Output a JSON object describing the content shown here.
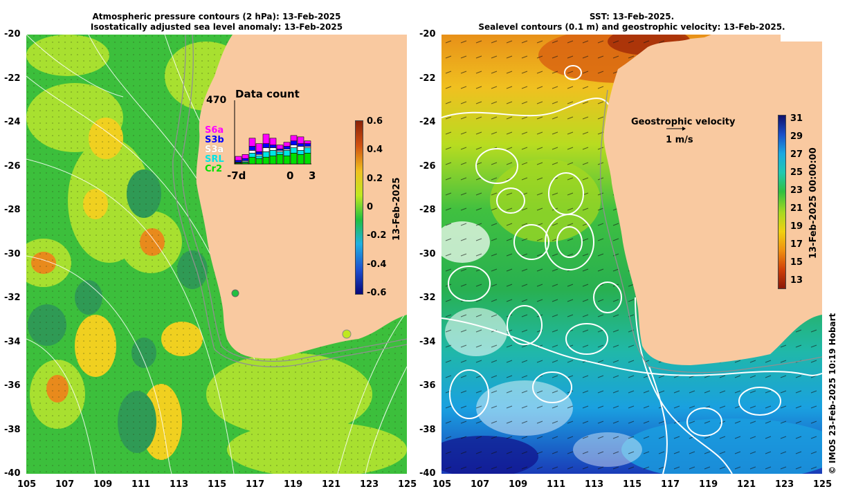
{
  "left_panel": {
    "title_line1": "Atmospheric pressure contours (2 hPa): 13-Feb-2025",
    "title_line2": "Isostatically adjusted sea level anomaly: 13-Feb-2025",
    "colorbar_label": "13-Feb-2025",
    "colorbar_ticks": [
      "0.6",
      "0.4",
      "0.2",
      "0",
      "-0.2",
      "-0.4",
      "-0.6"
    ],
    "colorbar_colors": [
      "#08087a",
      "#1d4fcf",
      "#20b0e0",
      "#20c040",
      "#c0e820",
      "#f0c020",
      "#d05010",
      "#8a2208"
    ],
    "inset": {
      "title": "Data count",
      "max_label": "470",
      "legend": [
        {
          "label": "S6a",
          "color": "#ff00ff"
        },
        {
          "label": "S3b",
          "color": "#0000ff"
        },
        {
          "label": "S3a",
          "color": "#ffffff"
        },
        {
          "label": "SRL",
          "color": "#00e5e5"
        },
        {
          "label": "Cr2",
          "color": "#00e000"
        }
      ],
      "x_labels": [
        "-7d",
        "0",
        "3"
      ],
      "bars": [
        [
          30,
          12,
          4,
          4,
          6
        ],
        [
          30,
          16,
          8,
          6,
          10
        ],
        [
          60,
          30,
          20,
          30,
          50
        ],
        [
          60,
          20,
          10,
          20,
          40
        ],
        [
          70,
          30,
          30,
          40,
          50
        ],
        [
          50,
          20,
          20,
          40,
          60
        ],
        [
          30,
          10,
          10,
          20,
          70
        ],
        [
          30,
          20,
          10,
          40,
          60
        ],
        [
          40,
          30,
          20,
          40,
          80
        ],
        [
          50,
          20,
          30,
          30,
          70
        ],
        [
          20,
          20,
          10,
          40,
          80
        ]
      ]
    }
  },
  "right_panel": {
    "title_line1": "SST: 13-Feb-2025.",
    "title_line2": "Sealevel contours (0.1 m) and geostrophic velocity: 13-Feb-2025.",
    "colorbar_label": "13-Feb-2025 00:00:00",
    "colorbar_ticks": [
      "31",
      "29",
      "27",
      "25",
      "23",
      "21",
      "19",
      "17",
      "15",
      "13"
    ],
    "colorbar_colors": [
      "#10106a",
      "#1a4fc8",
      "#1aa8e0",
      "#20c8b0",
      "#30c040",
      "#a8d820",
      "#f0d010",
      "#f09010",
      "#d04008",
      "#8a1808"
    ],
    "velocity_label": "Geostrophic velocity",
    "velocity_scale": "1 m/s"
  },
  "axes": {
    "lat_labels": [
      "-20",
      "-22",
      "-24",
      "-26",
      "-28",
      "-30",
      "-32",
      "-34",
      "-36",
      "-38",
      "-40"
    ],
    "lon_labels": [
      "105",
      "107",
      "109",
      "111",
      "113",
      "115",
      "117",
      "119",
      "121",
      "123",
      "125"
    ]
  },
  "credit": "© IMOS 23-Feb-2025 10:19 Hobart",
  "colors": {
    "land": "#f9c9a0",
    "ocean_green": "#3cbf3c",
    "ocean_lime": "#a8e030",
    "ocean_yellow": "#f0d020",
    "ocean_orange": "#e88a1c",
    "contour": "#ffffff",
    "isobath": "#909090"
  }
}
